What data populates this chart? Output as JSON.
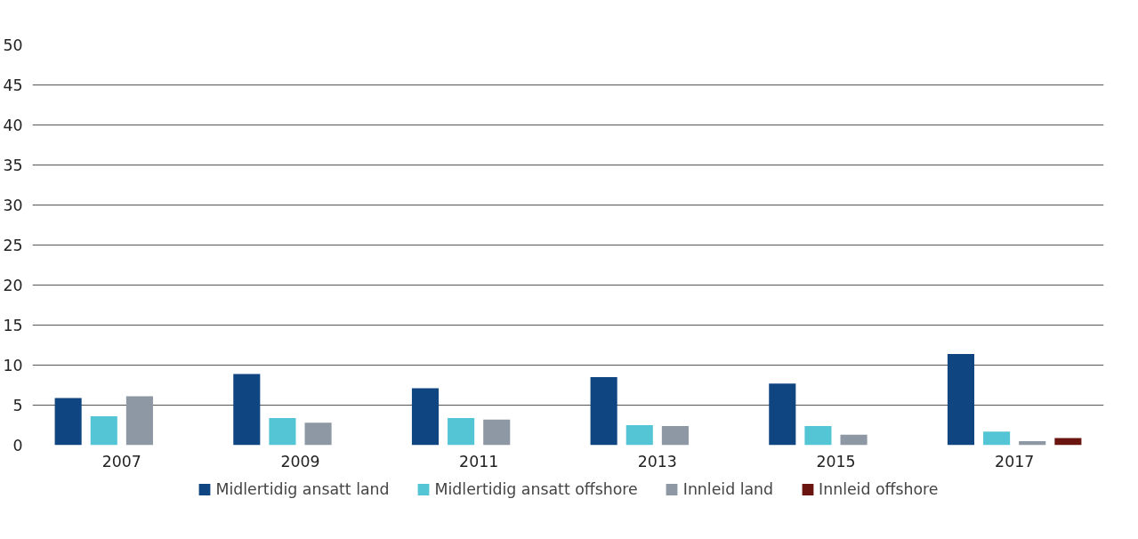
{
  "chart_data": {
    "type": "bar",
    "categories": [
      "2007",
      "2009",
      "2011",
      "2013",
      "2015",
      "2017"
    ],
    "series": [
      {
        "name": "Midlertidig ansatt land",
        "color": "#0f4581",
        "values": [
          5.9,
          8.9,
          7.1,
          8.5,
          7.7,
          11.4
        ]
      },
      {
        "name": "Midlertidig ansatt offshore",
        "color": "#54c5d4",
        "values": [
          3.6,
          3.4,
          3.4,
          2.5,
          2.4,
          1.7
        ]
      },
      {
        "name": "Innleid land",
        "color": "#8d98a4",
        "values": [
          6.1,
          2.8,
          3.2,
          2.4,
          1.3,
          0.5
        ]
      },
      {
        "name": "Innleid offshore",
        "color": "#6b1510",
        "values": [
          null,
          null,
          null,
          null,
          null,
          0.9
        ]
      }
    ],
    "ylim": [
      0,
      50
    ],
    "yticks": [
      0,
      5,
      10,
      15,
      20,
      25,
      30,
      35,
      40,
      45,
      50
    ],
    "grid": "y",
    "legend": "bottom"
  }
}
